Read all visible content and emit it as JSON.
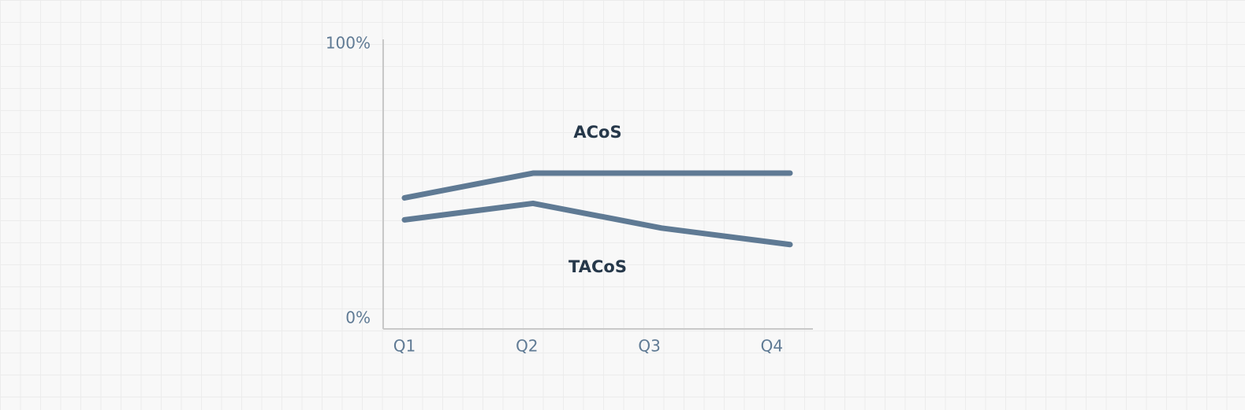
{
  "chart_data": {
    "type": "line",
    "categories": [
      "Q1",
      "Q2",
      "Q3",
      "Q4"
    ],
    "series": [
      {
        "name": "ACoS",
        "color": "#5f7a94",
        "values": [
          44,
          53,
          53,
          53
        ]
      },
      {
        "name": "TACoS",
        "color": "#5f7a94",
        "values": [
          36,
          42,
          33,
          27
        ]
      }
    ],
    "ylim": [
      0,
      100
    ],
    "yticks": [
      {
        "value": 0,
        "label": "0%"
      },
      {
        "value": 100,
        "label": "100%"
      }
    ],
    "grid": false
  }
}
